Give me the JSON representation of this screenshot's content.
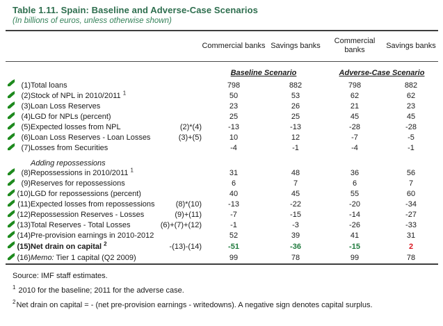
{
  "title": "Table 1.11. Spain: Baseline and Adverse-Case Scenarios",
  "subtitle": "(In billions of euros, unless otherwise shown)",
  "colors": {
    "title_green": "#2e6e4e",
    "flag_green": "#1e8a1e",
    "highlight_green": "#1f7a3d",
    "highlight_red": "#d9161f"
  },
  "table": {
    "header": {
      "columns": [
        "Commercial banks",
        "Savings banks",
        "Commercial banks",
        "Savings banks"
      ],
      "scenarios": [
        "Baseline Scenario",
        "Adverse-Case Scenario"
      ]
    },
    "rows": [
      {
        "num": "(1)",
        "label": "Total loans",
        "formula": "",
        "values": [
          "798",
          "882",
          "798",
          "882"
        ]
      },
      {
        "num": "(2)",
        "label": "Stock of NPL in 2010/2011",
        "sup": "1",
        "formula": "",
        "values": [
          "50",
          "53",
          "62",
          "62"
        ]
      },
      {
        "num": "(3)",
        "label": "Loan Loss Reserves",
        "formula": "",
        "values": [
          "23",
          "26",
          "21",
          "23"
        ]
      },
      {
        "num": "(4)",
        "label": "LGD for NPLs (percent)",
        "formula": "",
        "values": [
          "25",
          "25",
          "45",
          "45"
        ]
      },
      {
        "num": "(5)",
        "label": "Expected losses from NPL",
        "formula": "(2)*(4)",
        "values": [
          "-13",
          "-13",
          "-28",
          "-28"
        ]
      },
      {
        "num": "(6)",
        "label": "Loan Loss Reserves - Loan Losses",
        "formula": "(3)+(5)",
        "values": [
          "10",
          "12",
          "-7",
          "-5"
        ]
      },
      {
        "num": "(7)",
        "label": "Losses from Securities",
        "formula": "",
        "values": [
          "-4",
          "-1",
          "-4",
          "-1"
        ]
      },
      {
        "section": "Adding repossessions"
      },
      {
        "num": "(8)",
        "label": "Repossessions in 2010/2011",
        "sup": "1",
        "formula": "",
        "values": [
          "31",
          "48",
          "36",
          "56"
        ]
      },
      {
        "num": "(9)",
        "label": "Reserves for repossessions",
        "formula": "",
        "values": [
          "6",
          "7",
          "6",
          "7"
        ]
      },
      {
        "num": "(10)",
        "label": "LGD  for repossessions (percent)",
        "formula": "",
        "values": [
          "40",
          "45",
          "55",
          "60"
        ]
      },
      {
        "num": "(11)",
        "label": "Expected losses from repossessions",
        "formula": "(8)*(10)",
        "values": [
          "-13",
          "-22",
          "-20",
          "-34"
        ]
      },
      {
        "num": "(12)",
        "label": "Repossession Reserves - Losses",
        "formula": "(9)+(11)",
        "values": [
          "-7",
          "-15",
          "-14",
          "-27"
        ]
      },
      {
        "num": "(13)",
        "label": "Total Reserves - Total Losses",
        "formula": "(6)+(7)+(12)",
        "values": [
          "-1",
          "-3",
          "-26",
          "-33"
        ]
      },
      {
        "num": "(14)",
        "label": "Pre-provision earnings in 2010-2012",
        "formula": "",
        "values": [
          "52",
          "39",
          "41",
          "31"
        ]
      },
      {
        "num": "(15)",
        "label": "Net drain on capital",
        "sup": "2",
        "bold": true,
        "formula": "-(13)-(14)",
        "values": [
          "-51",
          "-36",
          "-15",
          "2"
        ],
        "value_colors": [
          "green",
          "green",
          "green",
          "red"
        ]
      },
      {
        "num": "(16)",
        "label_italic_prefix": "Memo:",
        "label": " Tier 1 capital (Q2 2009)",
        "formula": "",
        "values": [
          "99",
          "78",
          "99",
          "78"
        ]
      }
    ]
  },
  "footer": {
    "source": "Source: IMF staff estimates.",
    "footnotes": [
      {
        "sup": "1",
        "text": " 2010 for the baseline; 2011 for the adverse case."
      },
      {
        "sup": "2",
        "text": "Net drain on capital = - (net pre-provision earnings - writedowns). A negative sign denotes capital surplus."
      }
    ]
  }
}
